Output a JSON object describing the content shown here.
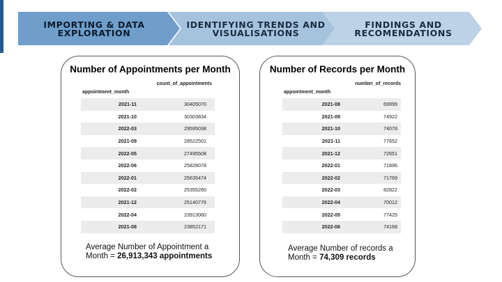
{
  "steps": [
    {
      "line1": "IMPORTING & DATA",
      "line2": "EXPLORATION"
    },
    {
      "line1": "IDENTIFYING TRENDS AND",
      "line2": "VISUALISATIONS"
    },
    {
      "line1": "FINDINGS AND",
      "line2": "RECOMENDATIONS"
    }
  ],
  "appointments": {
    "title": "Number of Appointments per Month",
    "column_header": "count_of_appointments",
    "index_header": "appointment_month",
    "rows": [
      {
        "month": "2021-11",
        "value": "30405070"
      },
      {
        "month": "2021-10",
        "value": "30303834"
      },
      {
        "month": "2022-03",
        "value": "29595038"
      },
      {
        "month": "2021-09",
        "value": "28522501"
      },
      {
        "month": "2022-05",
        "value": "27495508"
      },
      {
        "month": "2022-06",
        "value": "25828078"
      },
      {
        "month": "2022-01",
        "value": "25635474"
      },
      {
        "month": "2022-02",
        "value": "25355260"
      },
      {
        "month": "2021-12",
        "value": "25140776"
      },
      {
        "month": "2022-04",
        "value": "23913060"
      },
      {
        "month": "2021-08",
        "value": "23852171"
      }
    ],
    "summary_text": "Average Number of Appointment a Month = ",
    "summary_value": "26,913,343 appointments"
  },
  "records": {
    "title": "Number of Records per Month",
    "column_header": "number_of_records",
    "index_header": "appointment_month",
    "rows": [
      {
        "month": "2021-08",
        "value": "69999"
      },
      {
        "month": "2021-09",
        "value": "74922"
      },
      {
        "month": "2021-10",
        "value": "74078"
      },
      {
        "month": "2021-11",
        "value": "77652"
      },
      {
        "month": "2021-12",
        "value": "72651"
      },
      {
        "month": "2022-01",
        "value": "71896"
      },
      {
        "month": "2022-02",
        "value": "71769"
      },
      {
        "month": "2022-03",
        "value": "82822"
      },
      {
        "month": "2022-04",
        "value": "70012"
      },
      {
        "month": "2022-05",
        "value": "77425"
      },
      {
        "month": "2022-06",
        "value": "74168"
      }
    ],
    "summary_text": "Average Number of records a Month = ",
    "summary_value": "74,309 records"
  }
}
